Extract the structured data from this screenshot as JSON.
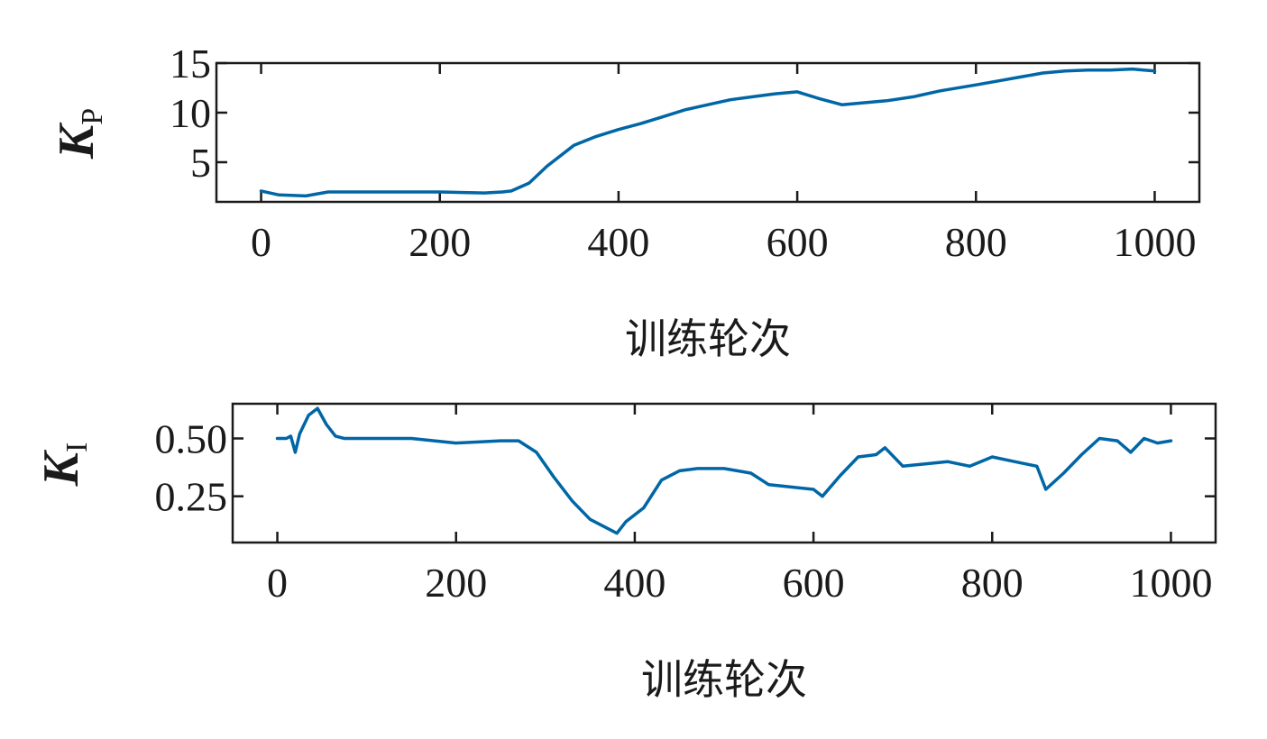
{
  "chart_data": [
    {
      "type": "line",
      "title": "",
      "xlabel": "训练轮次",
      "ylabel": {
        "main": "K",
        "subscript": "P"
      },
      "xlim": [
        -50,
        1050
      ],
      "ylim": [
        1,
        15
      ],
      "xticks": [
        "0",
        "200",
        "400",
        "600",
        "800",
        "1000"
      ],
      "yticks": [
        "5",
        "10",
        "15"
      ],
      "grid": false,
      "line_color": "#0066a6",
      "series": [
        {
          "x": [
            0,
            20,
            50,
            75,
            100,
            150,
            200,
            250,
            270,
            280,
            300,
            320,
            350,
            375,
            400,
            425,
            450,
            475,
            500,
            525,
            550,
            575,
            600,
            625,
            650,
            675,
            700,
            730,
            760,
            800,
            825,
            850,
            875,
            900,
            925,
            950,
            975,
            1000
          ],
          "values": [
            2.1,
            1.7,
            1.6,
            2.0,
            2.0,
            2.0,
            2.0,
            1.9,
            2.0,
            2.1,
            2.9,
            4.6,
            6.7,
            7.6,
            8.3,
            8.9,
            9.6,
            10.3,
            10.8,
            11.3,
            11.6,
            11.9,
            12.1,
            11.4,
            10.8,
            11.0,
            11.2,
            11.6,
            12.2,
            12.8,
            13.2,
            13.6,
            14.0,
            14.2,
            14.3,
            14.3,
            14.4,
            14.2
          ]
        }
      ]
    },
    {
      "type": "line",
      "title": "",
      "xlabel": "训练轮次",
      "ylabel": {
        "main": "K",
        "subscript": "I"
      },
      "xlim": [
        -50,
        1050
      ],
      "ylim": [
        0.05,
        0.65
      ],
      "xticks": [
        "0",
        "200",
        "400",
        "600",
        "800",
        "1000"
      ],
      "yticks": [
        "0.25",
        "0.50"
      ],
      "grid": false,
      "line_color": "#0066a6",
      "series": [
        {
          "x": [
            0,
            10,
            15,
            20,
            25,
            35,
            45,
            55,
            65,
            75,
            100,
            150,
            200,
            250,
            270,
            290,
            310,
            330,
            350,
            370,
            380,
            390,
            410,
            430,
            450,
            470,
            500,
            530,
            550,
            575,
            600,
            610,
            630,
            650,
            670,
            680,
            700,
            725,
            750,
            775,
            800,
            825,
            850,
            860,
            880,
            900,
            920,
            940,
            955,
            970,
            985,
            1000
          ],
          "values": [
            0.5,
            0.5,
            0.51,
            0.44,
            0.52,
            0.6,
            0.63,
            0.56,
            0.51,
            0.5,
            0.5,
            0.5,
            0.48,
            0.49,
            0.49,
            0.44,
            0.33,
            0.23,
            0.15,
            0.11,
            0.09,
            0.14,
            0.2,
            0.32,
            0.36,
            0.37,
            0.37,
            0.35,
            0.3,
            0.29,
            0.28,
            0.25,
            0.34,
            0.42,
            0.43,
            0.46,
            0.38,
            0.39,
            0.4,
            0.38,
            0.42,
            0.4,
            0.38,
            0.28,
            0.35,
            0.43,
            0.5,
            0.49,
            0.44,
            0.5,
            0.48,
            0.49
          ]
        }
      ]
    }
  ]
}
